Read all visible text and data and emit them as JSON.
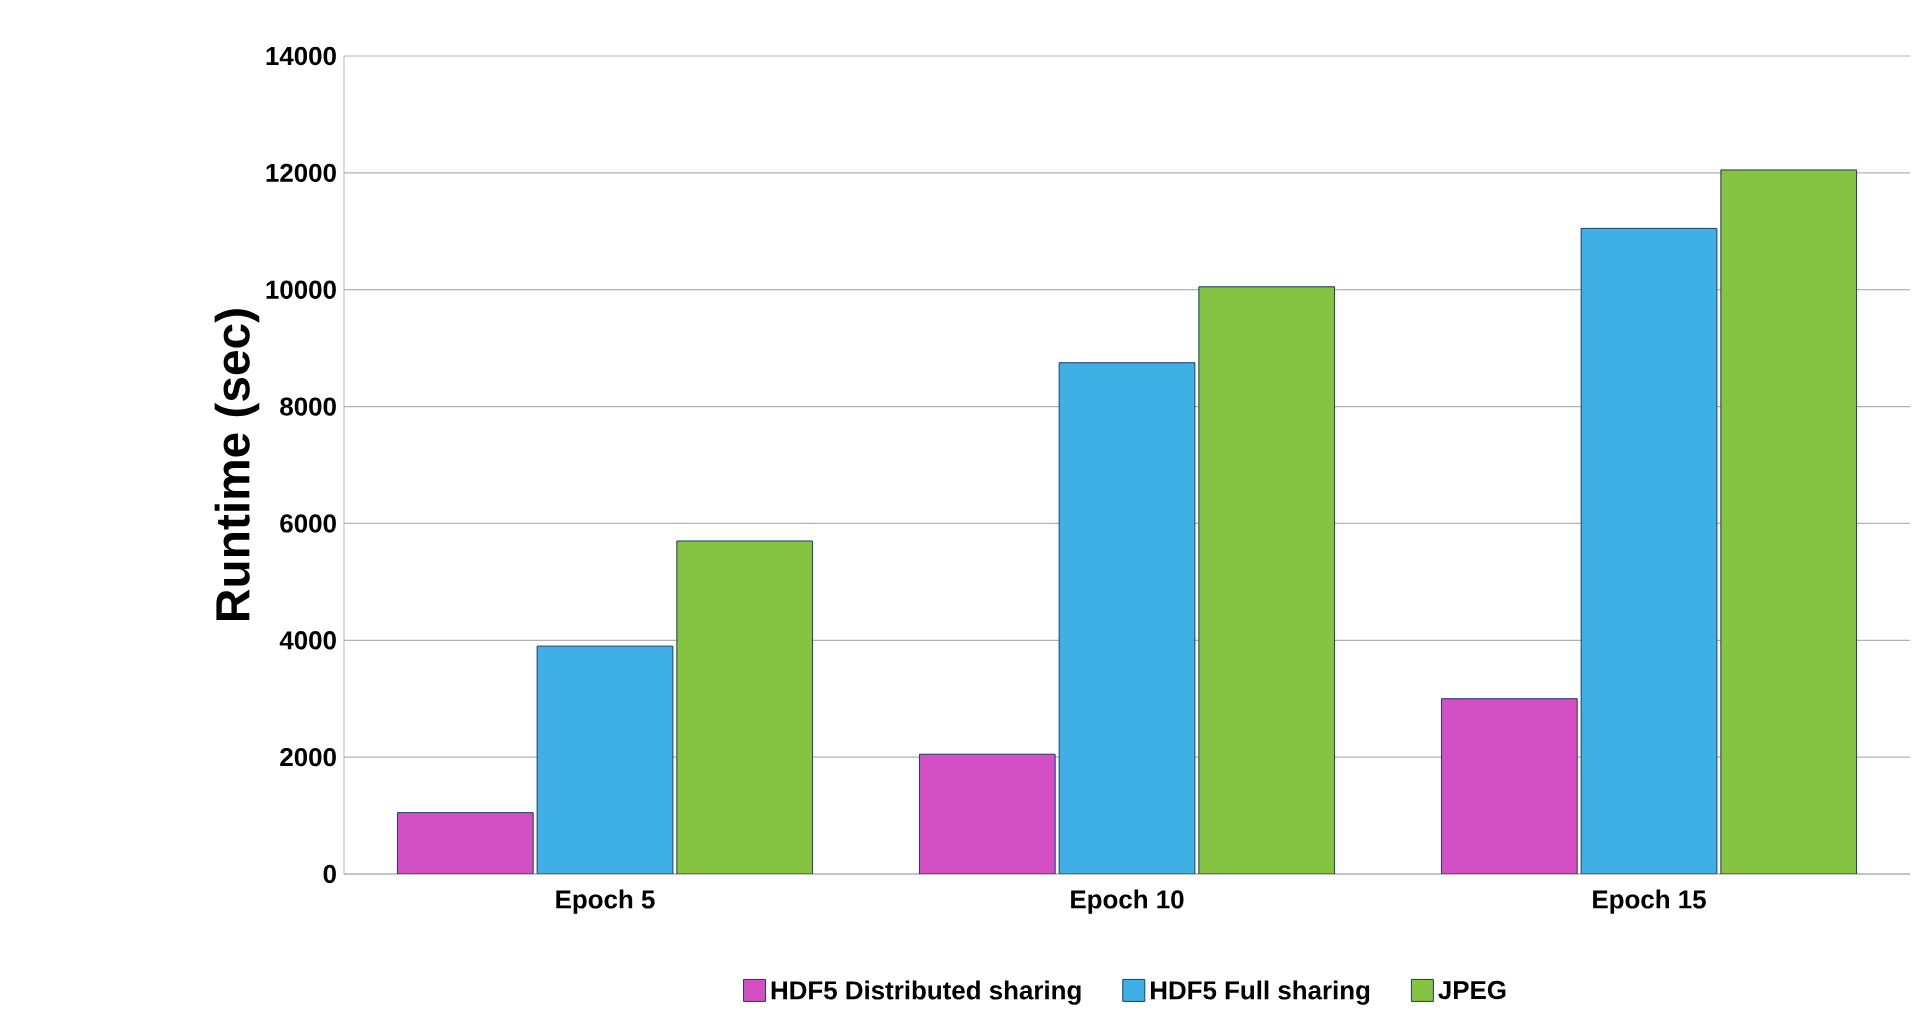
{
  "chart_data": {
    "type": "bar",
    "ylabel": "Runtime (sec)",
    "categories": [
      "Epoch 5",
      "Epoch 10",
      "Epoch 15"
    ],
    "series": [
      {
        "name": "HDF5 Distributed sharing",
        "color": "#d44fc4",
        "values": [
          1050,
          2050,
          3000
        ]
      },
      {
        "name": "HDF5 Full sharing",
        "color": "#3fb0e6",
        "values": [
          3900,
          8750,
          11050
        ]
      },
      {
        "name": "JPEG",
        "color": "#84c441",
        "values": [
          5700,
          10050,
          12050
        ]
      }
    ],
    "ylim": [
      0,
      14000
    ],
    "yticks": [
      0,
      2000,
      4000,
      6000,
      8000,
      10000,
      12000,
      14000
    ],
    "grid": "y",
    "legend": "bottom"
  }
}
